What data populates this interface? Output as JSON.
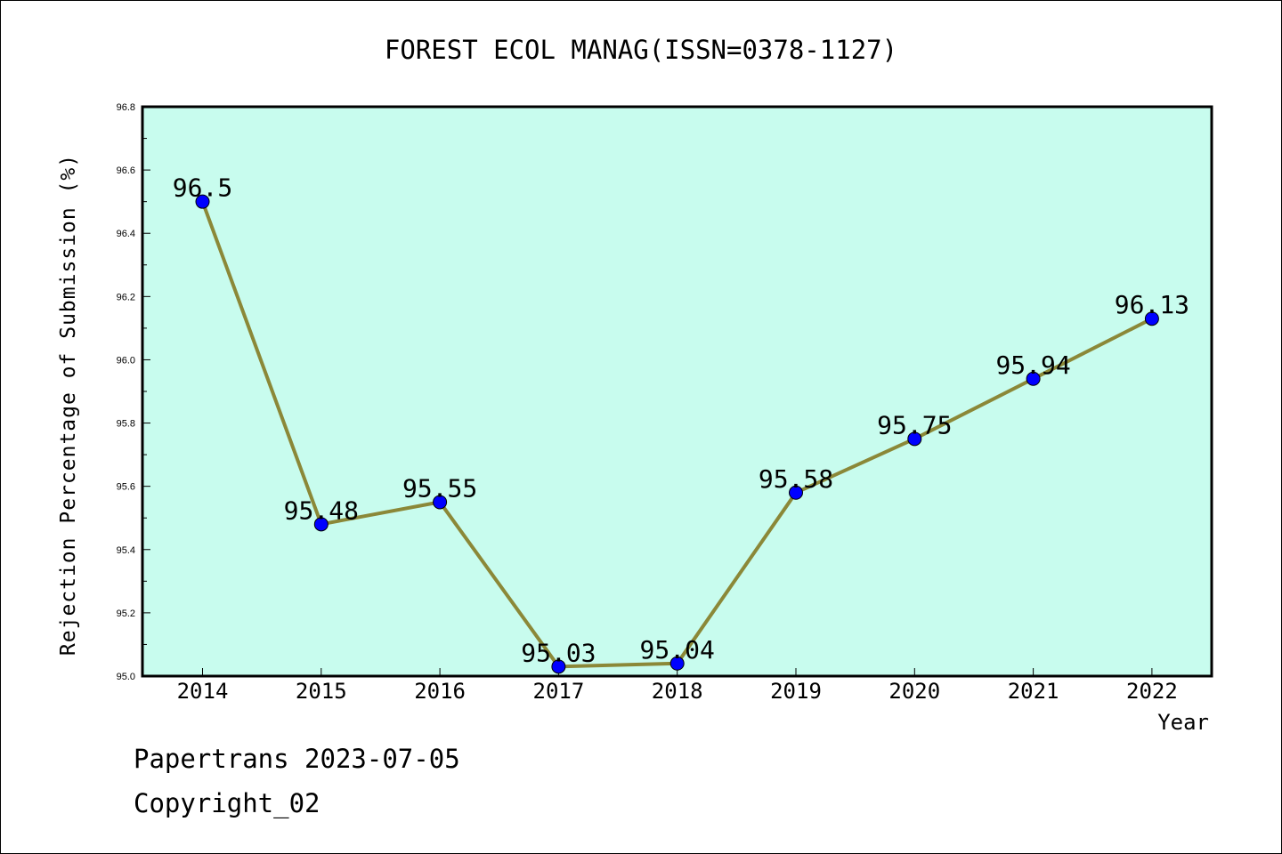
{
  "chart_data": {
    "type": "line",
    "title": "FOREST ECOL MANAG(ISSN=0378-1127)",
    "xlabel": "Year",
    "ylabel": "Rejection Percentage of Submission (%)",
    "categories": [
      "2014",
      "2015",
      "2016",
      "2017",
      "2018",
      "2019",
      "2020",
      "2021",
      "2022"
    ],
    "series": [
      {
        "values": [
          96.5,
          95.48,
          95.55,
          95.03,
          95.04,
          95.58,
          95.75,
          95.94,
          96.13
        ],
        "labels": [
          "96.5",
          "95.48",
          "95.55",
          "95.03",
          "95.04",
          "95.58",
          "95.75",
          "95.94",
          "96.13"
        ]
      }
    ],
    "ylim": [
      95.0,
      96.8
    ],
    "yticks": [
      "95.0",
      "95.2",
      "95.4",
      "95.6",
      "95.8",
      "96.0",
      "96.2",
      "96.4",
      "96.6",
      "96.8"
    ],
    "grid": false,
    "colors": {
      "plot_background": "#c8fcee",
      "line": "#8b8838",
      "marker": "#0000ff"
    }
  },
  "footer": {
    "line1": "Papertrans 2023-07-05",
    "line2": "Copyright_02"
  }
}
